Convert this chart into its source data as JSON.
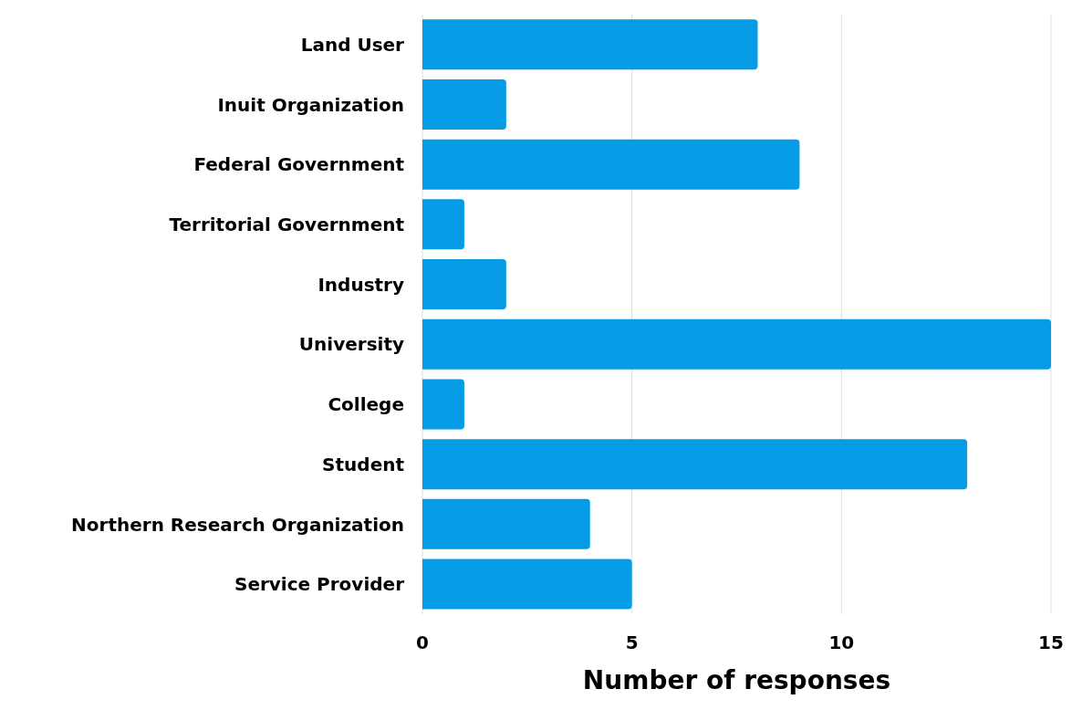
{
  "chart_data": {
    "type": "bar",
    "orientation": "horizontal",
    "xlabel": "Number of responses",
    "categories": [
      "Land User",
      "Inuit Organization",
      "Federal Government",
      "Territorial Government",
      "Industry",
      "University",
      "College",
      "Student",
      "Northern Research Organization",
      "Service Provider"
    ],
    "values": [
      8,
      2,
      9,
      1,
      2,
      15,
      1,
      13,
      4,
      5
    ],
    "color": "#069be5",
    "xlim": [
      0,
      15
    ],
    "xticks": [
      0,
      5,
      10,
      15
    ],
    "grid": "x"
  }
}
